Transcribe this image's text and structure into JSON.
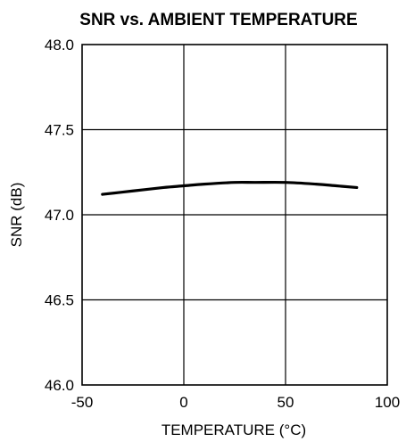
{
  "chart_data": {
    "type": "line",
    "title": "SNR vs. AMBIENT TEMPERATURE",
    "xlabel": "TEMPERATURE (°C)",
    "ylabel": "SNR (dB)",
    "xlim": [
      -50,
      100
    ],
    "ylim": [
      46.0,
      48.0
    ],
    "x_ticks": [
      -50,
      0,
      50,
      100
    ],
    "x_tick_labels": [
      "-50",
      "0",
      "50",
      "100"
    ],
    "y_ticks": [
      46.0,
      46.5,
      47.0,
      47.5,
      48.0
    ],
    "y_tick_labels": [
      "46.0",
      "46.5",
      "47.0",
      "47.5",
      "48.0"
    ],
    "grid": true,
    "series": [
      {
        "x": [
          -40,
          -25,
          -10,
          0,
          10,
          25,
          35,
          50,
          65,
          75,
          85
        ],
        "y": [
          47.12,
          47.14,
          47.16,
          47.17,
          47.18,
          47.19,
          47.19,
          47.19,
          47.18,
          47.17,
          47.16
        ],
        "color": "#000000"
      }
    ]
  }
}
